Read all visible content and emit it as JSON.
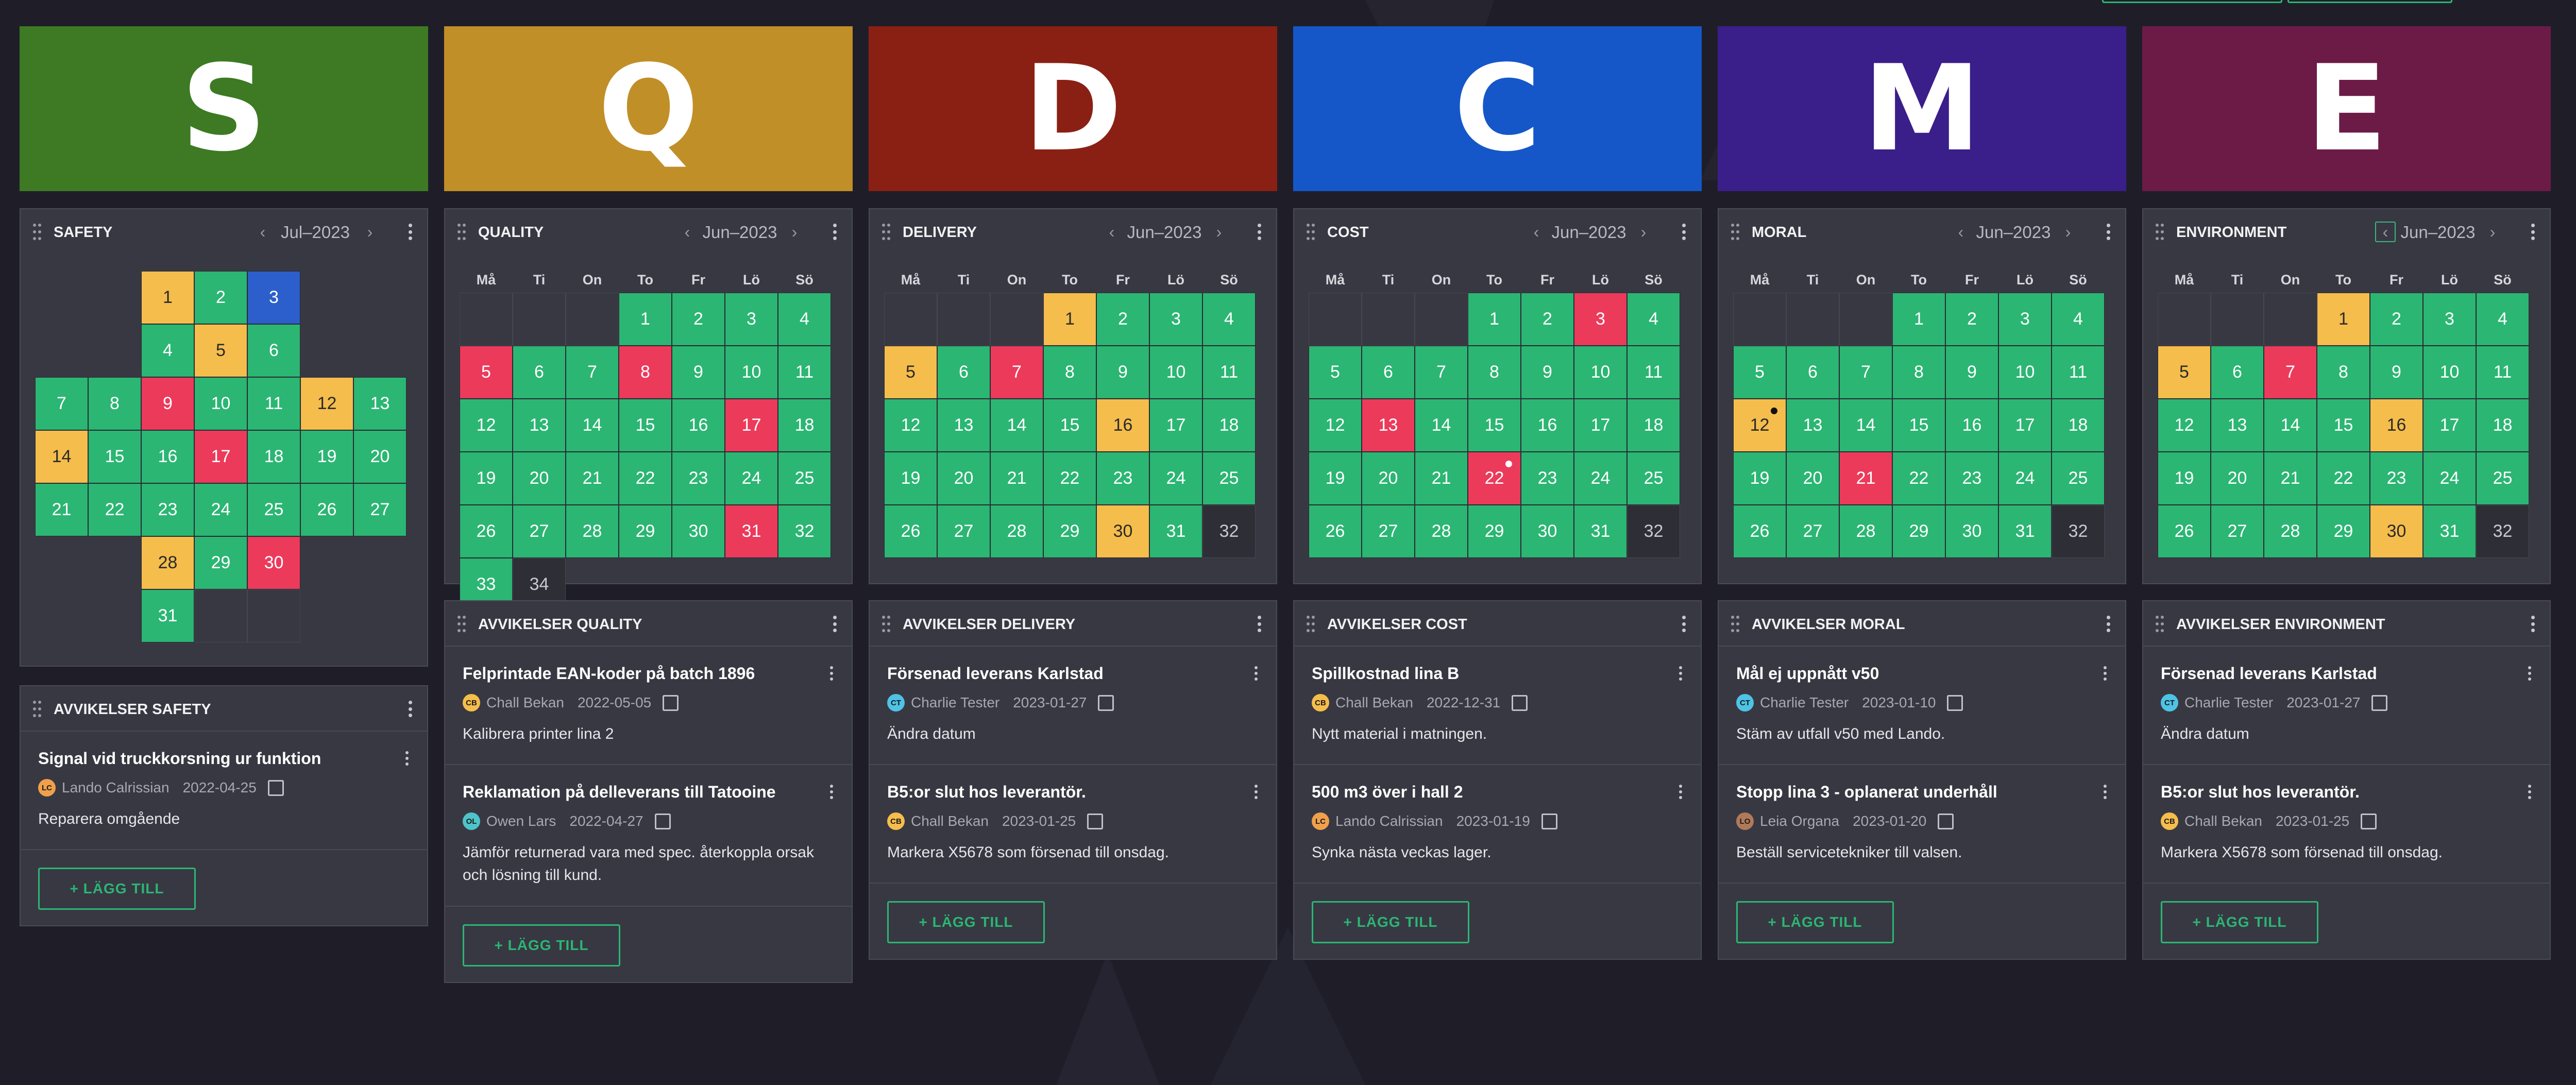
{
  "weekdays": [
    "Må",
    "Ti",
    "On",
    "To",
    "Fr",
    "Lö",
    "Sö"
  ],
  "colors": {
    "green": "#2bb673",
    "yellow": "#f5bd4b",
    "red": "#ec3a5b",
    "blue": "#2c5fcc"
  },
  "nav_prev_icon": "chevron-left-icon",
  "nav_next_icon": "chevron-right-icon",
  "columns": [
    {
      "letter": "S",
      "banner_color": "#3d7a23",
      "title": "SAFETY",
      "month": "Jul–2023",
      "deviations_title": "AVVIKELSER SAFETY",
      "add_label": "+ LÄGG TILL",
      "items": [
        {
          "title": "Signal vid truckkorsning ur funktion",
          "initials": "LC",
          "avatar_color": "#f0a04b",
          "user": "Lando Calrissian",
          "date": "2022-04-25",
          "desc": "Reparera omgående"
        }
      ]
    },
    {
      "letter": "Q",
      "banner_color": "#c18f28",
      "title": "QUALITY",
      "month": "Jun–2023",
      "deviations_title": "AVVIKELSER QUALITY",
      "add_label": "+ LÄGG TILL",
      "days": [
        "e",
        "e",
        "e",
        "g",
        "g",
        "g",
        "g",
        "r",
        "g",
        "g",
        "r",
        "g",
        "g",
        "g",
        "g",
        "g",
        "g",
        "g",
        "g",
        "r",
        "g",
        "g",
        "g",
        "g",
        "g",
        "g",
        "g",
        "g",
        "g",
        "g",
        "g",
        "g",
        "g",
        "r",
        "g",
        "g",
        "e"
      ],
      "dots": {},
      "items": [
        {
          "title": "Felprintade EAN-koder på batch 1896",
          "initials": "CB",
          "avatar_color": "#f5bd4b",
          "user": "Chall Bekan",
          "date": "2022-05-05",
          "desc": "Kalibrera printer lina 2"
        },
        {
          "title": "Reklamation på delleverans till Tatooine",
          "initials": "OL",
          "avatar_color": "#4ec3c9",
          "user": "Owen Lars",
          "date": "2022-04-27",
          "desc": "Jämför returnerad vara med spec. återkoppla orsak och lösning till kund."
        }
      ]
    },
    {
      "letter": "D",
      "banner_color": "#8a2014",
      "title": "DELIVERY",
      "month": "Jun–2023",
      "deviations_title": "AVVIKELSER DELIVERY",
      "add_label": "+ LÄGG TILL",
      "days": [
        "e",
        "e",
        "e",
        "y",
        "g",
        "g",
        "g",
        "y",
        "g",
        "r",
        "g",
        "g",
        "g",
        "g",
        "g",
        "g",
        "g",
        "g",
        "y",
        "g",
        "g",
        "g",
        "g",
        "g",
        "g",
        "g",
        "g",
        "g",
        "g",
        "g",
        "g",
        "g",
        "y",
        "g",
        "e"
      ],
      "dots": {},
      "items": [
        {
          "title": "Försenad leverans Karlstad",
          "initials": "CT",
          "avatar_color": "#4ec3e6",
          "user": "Charlie Tester",
          "date": "2023-01-27",
          "desc": "Ändra datum"
        },
        {
          "title": "B5:or slut hos leverantör.",
          "initials": "CB",
          "avatar_color": "#f5bd4b",
          "user": "Chall Bekan",
          "date": "2023-01-25",
          "desc": "Markera X5678 som försenad till onsdag."
        }
      ]
    },
    {
      "letter": "C",
      "banner_color": "#1557c9",
      "title": "COST",
      "month": "Jun–2023",
      "deviations_title": "AVVIKELSER COST",
      "add_label": "+ LÄGG TILL",
      "days": [
        "e",
        "e",
        "e",
        "g",
        "g",
        "r",
        "g",
        "g",
        "g",
        "g",
        "g",
        "g",
        "g",
        "g",
        "g",
        "r",
        "g",
        "g",
        "g",
        "g",
        "g",
        "g",
        "g",
        "g",
        "r",
        "g",
        "g",
        "g",
        "g",
        "g",
        "g",
        "g",
        "g",
        "g",
        "e"
      ],
      "dots": {
        "22": "w"
      },
      "items": [
        {
          "title": "Spillkostnad lina B",
          "initials": "CB",
          "avatar_color": "#f5bd4b",
          "user": "Chall Bekan",
          "date": "2022-12-31",
          "desc": "Nytt material i matningen."
        },
        {
          "title": "500 m3 över i hall 2",
          "initials": "LC",
          "avatar_color": "#f0a04b",
          "user": "Lando Calrissian",
          "date": "2023-01-19",
          "desc": "Synka nästa veckas lager."
        }
      ]
    },
    {
      "letter": "M",
      "banner_color": "#3a1e8a",
      "title": "MORAL",
      "month": "Jun–2023",
      "deviations_title": "AVVIKELSER MORAL",
      "add_label": "+ LÄGG TILL",
      "days": [
        "e",
        "e",
        "e",
        "g",
        "g",
        "g",
        "g",
        "g",
        "g",
        "g",
        "g",
        "g",
        "g",
        "g",
        "y",
        "g",
        "g",
        "g",
        "g",
        "g",
        "g",
        "g",
        "g",
        "r",
        "g",
        "g",
        "g",
        "g",
        "g",
        "g",
        "g",
        "g",
        "g",
        "g",
        "e"
      ],
      "dots": {
        "12": "k"
      },
      "items": [
        {
          "title": "Mål ej uppnått v50",
          "initials": "CT",
          "avatar_color": "#4ec3e6",
          "user": "Charlie Tester",
          "date": "2023-01-10",
          "desc": "Stäm av utfall v50 med Lando."
        },
        {
          "title": "Stopp lina 3 - oplanerat underhåll",
          "initials": "LO",
          "avatar_color": "#b07a5a",
          "user": "Leia Organa",
          "date": "2023-01-20",
          "desc": "Beställ servicetekniker till valsen."
        }
      ]
    },
    {
      "letter": "E",
      "banner_color": "#6c1b46",
      "title": "ENVIRONMENT",
      "month": "Jun–2023",
      "deviations_title": "AVVIKELSER ENVIRONMENT",
      "add_label": "+ LÄGG TILL",
      "days": [
        "e",
        "e",
        "e",
        "y",
        "g",
        "g",
        "g",
        "y",
        "g",
        "r",
        "g",
        "g",
        "g",
        "g",
        "g",
        "g",
        "g",
        "g",
        "y",
        "g",
        "g",
        "g",
        "g",
        "g",
        "g",
        "g",
        "g",
        "g",
        "g",
        "g",
        "g",
        "g",
        "y",
        "g",
        "e"
      ],
      "dots": {},
      "items": [
        {
          "title": "Försenad leverans Karlstad",
          "initials": "CT",
          "avatar_color": "#4ec3e6",
          "user": "Charlie Tester",
          "date": "2023-01-27",
          "desc": "Ändra datum"
        },
        {
          "title": "B5:or slut hos leverantör.",
          "initials": "CB",
          "avatar_color": "#f5bd4b",
          "user": "Chall Bekan",
          "date": "2023-01-25",
          "desc": "Markera X5678 som försenad till onsdag."
        }
      ]
    }
  ],
  "safety_days": {
    "1": "y",
    "2": "g",
    "3": "b",
    "4": "g",
    "5": "y",
    "6": "g",
    "7": "g",
    "8": "g",
    "9": "r",
    "10": "g",
    "11": "g",
    "12": "y",
    "13": "g",
    "14": "y",
    "15": "g",
    "16": "g",
    "17": "r",
    "18": "g",
    "19": "g",
    "20": "g",
    "21": "g",
    "22": "g",
    "23": "g",
    "24": "g",
    "25": "g",
    "26": "g",
    "27": "g",
    "28": "y",
    "29": "g",
    "30": "r",
    "31": "g"
  }
}
